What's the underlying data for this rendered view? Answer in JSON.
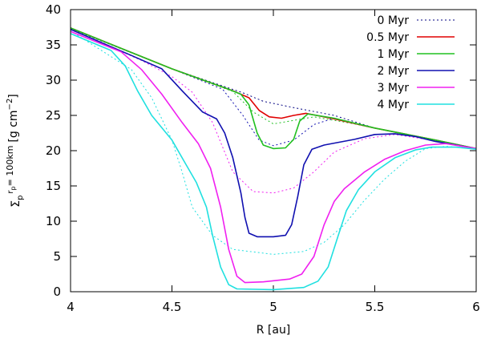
{
  "chart_data": {
    "type": "line",
    "xlabel": "R [au]",
    "ylabel_prefix": "Σ",
    "ylabel_sub": "p",
    "ylabel_sub2": "r",
    "ylabel_sub3": "p",
    "ylabel_rest": "= 100km",
    "ylabel_unit": "[g cm",
    "ylabel_unit_exp": "−2",
    "ylabel_unit_close": "]",
    "xlim": [
      4,
      6
    ],
    "ylim": [
      0,
      40
    ],
    "x_ticks": [
      4,
      4.5,
      5,
      5.5,
      6
    ],
    "x_tick_labels": [
      "4",
      "4.5",
      "5",
      "5.5",
      "6"
    ],
    "y_ticks": [
      0,
      5,
      10,
      15,
      20,
      25,
      30,
      35,
      40
    ],
    "y_tick_labels": [
      "0",
      "5",
      "10",
      "15",
      "20",
      "25",
      "30",
      "35",
      "40"
    ],
    "legend_position": "top-right",
    "series": [
      {
        "name": "0 Myr",
        "color": "#000080",
        "style": "dotted",
        "points": [
          [
            4,
            37.4
          ],
          [
            4.5,
            31.6
          ],
          [
            4.85,
            28.2
          ],
          [
            4.95,
            27.0
          ],
          [
            5.1,
            26.1
          ],
          [
            5.3,
            25.0
          ],
          [
            5.5,
            23.2
          ],
          [
            5.8,
            21.5
          ],
          [
            6,
            20.3
          ]
        ]
      },
      {
        "name": "0.5 Myr",
        "color": "#e00000",
        "style": "solid",
        "points": [
          [
            4,
            37.4
          ],
          [
            4.5,
            31.6
          ],
          [
            4.8,
            28.5
          ],
          [
            4.88,
            27.5
          ],
          [
            4.93,
            25.7
          ],
          [
            4.98,
            24.8
          ],
          [
            5.04,
            24.6
          ],
          [
            5.1,
            25.0
          ],
          [
            5.16,
            25.3
          ],
          [
            5.3,
            24.5
          ],
          [
            5.5,
            23.2
          ],
          [
            5.8,
            21.5
          ],
          [
            6,
            20.3
          ]
        ]
      },
      {
        "name": "1 Myr",
        "color": "#20c020",
        "style": "solid",
        "points": [
          [
            4,
            37.4
          ],
          [
            4.5,
            31.6
          ],
          [
            4.78,
            28.7
          ],
          [
            4.84,
            28.0
          ],
          [
            4.88,
            26.5
          ],
          [
            4.92,
            22.5
          ],
          [
            4.95,
            20.8
          ],
          [
            5.0,
            20.3
          ],
          [
            5.06,
            20.4
          ],
          [
            5.1,
            21.6
          ],
          [
            5.13,
            24.2
          ],
          [
            5.17,
            25.2
          ],
          [
            5.3,
            24.6
          ],
          [
            5.5,
            23.2
          ],
          [
            5.8,
            21.5
          ],
          [
            6,
            20.3
          ]
        ]
      },
      {
        "name": "2 Myr",
        "color": "#1010b0",
        "style": "solid",
        "points": [
          [
            4,
            37.2
          ],
          [
            4.3,
            33.5
          ],
          [
            4.45,
            31.6
          ],
          [
            4.55,
            28.5
          ],
          [
            4.65,
            25.5
          ],
          [
            4.72,
            24.5
          ],
          [
            4.76,
            22.5
          ],
          [
            4.8,
            19.0
          ],
          [
            4.84,
            14.0
          ],
          [
            4.86,
            10.5
          ],
          [
            4.88,
            8.3
          ],
          [
            4.92,
            7.8
          ],
          [
            5.0,
            7.8
          ],
          [
            5.06,
            8.0
          ],
          [
            5.09,
            9.5
          ],
          [
            5.12,
            13.5
          ],
          [
            5.15,
            18.0
          ],
          [
            5.19,
            20.2
          ],
          [
            5.25,
            20.8
          ],
          [
            5.4,
            21.6
          ],
          [
            5.5,
            22.3
          ],
          [
            5.6,
            22.4
          ],
          [
            5.7,
            22.0
          ],
          [
            5.8,
            21.3
          ],
          [
            6,
            20.3
          ]
        ]
      },
      {
        "name": "3 Myr",
        "color": "#f020f0",
        "style": "solid",
        "points": [
          [
            4,
            36.9
          ],
          [
            4.25,
            34.0
          ],
          [
            4.35,
            31.5
          ],
          [
            4.45,
            28.0
          ],
          [
            4.55,
            24.0
          ],
          [
            4.63,
            21.0
          ],
          [
            4.69,
            17.5
          ],
          [
            4.74,
            12.0
          ],
          [
            4.78,
            6.0
          ],
          [
            4.82,
            2.2
          ],
          [
            4.86,
            1.3
          ],
          [
            4.95,
            1.4
          ],
          [
            5.08,
            1.8
          ],
          [
            5.14,
            2.5
          ],
          [
            5.2,
            5.0
          ],
          [
            5.25,
            9.5
          ],
          [
            5.3,
            12.8
          ],
          [
            5.35,
            14.6
          ],
          [
            5.45,
            17.0
          ],
          [
            5.55,
            18.8
          ],
          [
            5.65,
            20.0
          ],
          [
            5.75,
            20.8
          ],
          [
            5.85,
            21.0
          ],
          [
            6,
            20.3
          ]
        ]
      },
      {
        "name": "4 Myr",
        "color": "#20e0e0",
        "style": "solid",
        "points": [
          [
            4,
            36.6
          ],
          [
            4.2,
            34.2
          ],
          [
            4.27,
            32.0
          ],
          [
            4.33,
            28.5
          ],
          [
            4.4,
            25.0
          ],
          [
            4.5,
            21.5
          ],
          [
            4.57,
            18.0
          ],
          [
            4.62,
            15.5
          ],
          [
            4.67,
            12.0
          ],
          [
            4.7,
            8.0
          ],
          [
            4.74,
            3.5
          ],
          [
            4.78,
            1.0
          ],
          [
            4.82,
            0.4
          ],
          [
            5.0,
            0.3
          ],
          [
            5.15,
            0.6
          ],
          [
            5.22,
            1.5
          ],
          [
            5.27,
            3.5
          ],
          [
            5.32,
            8.0
          ],
          [
            5.36,
            11.5
          ],
          [
            5.42,
            14.5
          ],
          [
            5.5,
            17.0
          ],
          [
            5.6,
            19.0
          ],
          [
            5.7,
            20.1
          ],
          [
            5.78,
            20.5
          ],
          [
            5.9,
            20.5
          ],
          [
            6,
            20.2
          ]
        ]
      },
      {
        "name": "",
        "color": "#20c020",
        "style": "dotted",
        "points": [
          [
            4,
            37.3
          ],
          [
            4.5,
            31.6
          ],
          [
            4.8,
            28.4
          ],
          [
            4.9,
            25.5
          ],
          [
            5.0,
            23.8
          ],
          [
            5.1,
            24.3
          ],
          [
            5.2,
            24.8
          ],
          [
            5.4,
            23.8
          ],
          [
            5.6,
            22.6
          ],
          [
            6,
            20.3
          ]
        ]
      },
      {
        "name": "",
        "color": "#1010b0",
        "style": "dotted",
        "points": [
          [
            4,
            37.3
          ],
          [
            4.5,
            31.6
          ],
          [
            4.75,
            28.7
          ],
          [
            4.85,
            25.0
          ],
          [
            4.93,
            21.5
          ],
          [
            5.0,
            20.7
          ],
          [
            5.1,
            21.5
          ],
          [
            5.2,
            23.7
          ],
          [
            5.3,
            24.6
          ],
          [
            5.5,
            23.2
          ],
          [
            6,
            20.3
          ]
        ]
      },
      {
        "name": "",
        "color": "#f020f0",
        "style": "dotted",
        "points": [
          [
            4,
            37.2
          ],
          [
            4.35,
            32.8
          ],
          [
            4.5,
            30.5
          ],
          [
            4.6,
            28.3
          ],
          [
            4.7,
            24.0
          ],
          [
            4.8,
            17.0
          ],
          [
            4.9,
            14.2
          ],
          [
            5.0,
            14.0
          ],
          [
            5.1,
            14.7
          ],
          [
            5.2,
            17.0
          ],
          [
            5.3,
            19.8
          ],
          [
            5.45,
            21.7
          ],
          [
            5.6,
            22.3
          ],
          [
            5.8,
            21.4
          ],
          [
            6,
            20.3
          ]
        ]
      },
      {
        "name": "",
        "color": "#20e0e0",
        "style": "dotted",
        "points": [
          [
            4,
            37.0
          ],
          [
            4.3,
            31.5
          ],
          [
            4.4,
            27.5
          ],
          [
            4.5,
            21.5
          ],
          [
            4.55,
            17.0
          ],
          [
            4.6,
            12.0
          ],
          [
            4.7,
            8.0
          ],
          [
            4.8,
            6.0
          ],
          [
            5.0,
            5.3
          ],
          [
            5.15,
            5.7
          ],
          [
            5.25,
            7.0
          ],
          [
            5.35,
            9.5
          ],
          [
            5.45,
            13.0
          ],
          [
            5.55,
            16.0
          ],
          [
            5.65,
            18.5
          ],
          [
            5.75,
            20.3
          ],
          [
            5.85,
            20.6
          ],
          [
            6,
            20.3
          ]
        ]
      }
    ]
  }
}
